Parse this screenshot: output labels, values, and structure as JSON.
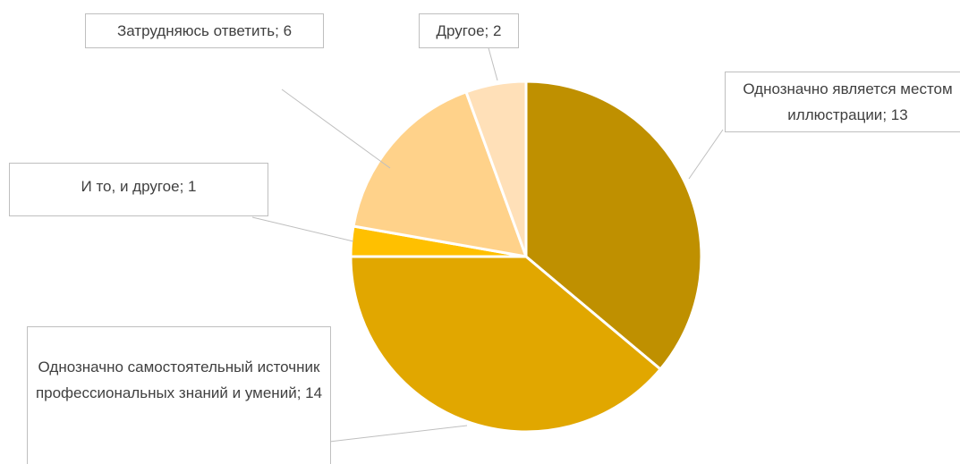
{
  "chart_data": {
    "type": "pie",
    "categories": [
      "Однозначно является местом иллюстрации",
      "Однозначно самостоятельный источник профессиональных знаний и умений",
      "И то, и другое",
      "Затрудняюсь ответить",
      "Другое"
    ],
    "values": [
      13,
      14,
      1,
      6,
      2
    ],
    "colors": [
      "#bf9000",
      "#e1a700",
      "#ffc000",
      "#ffd28a",
      "#ffe0b8"
    ],
    "label_separator": "; "
  }
}
